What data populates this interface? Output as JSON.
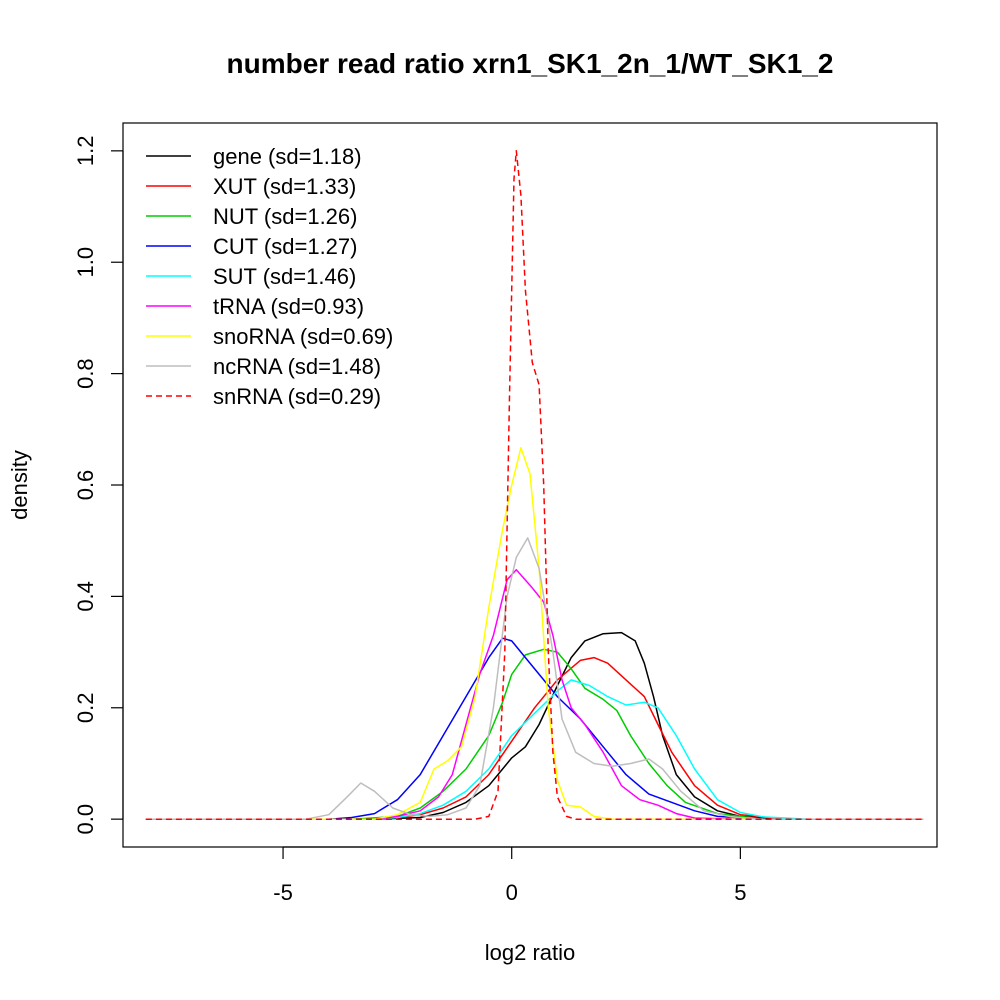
{
  "chart_data": {
    "type": "line",
    "title": "number read ratio xrn1_SK1_2n_1/WT_SK1_2",
    "xlabel": "log2 ratio",
    "ylabel": "density",
    "xlim": [
      -8.5,
      9.3
    ],
    "ylim": [
      -0.05,
      1.25
    ],
    "x_ticks": [
      -5,
      0,
      5
    ],
    "x_tick_labels": [
      "-5",
      "0",
      "5"
    ],
    "y_ticks": [
      0.0,
      0.2,
      0.4,
      0.6,
      0.8,
      1.0,
      1.2
    ],
    "y_tick_labels": [
      "0.0",
      "0.2",
      "0.4",
      "0.6",
      "0.8",
      "1.0",
      "1.2"
    ],
    "grid": false,
    "legend_position": "top-left",
    "series": [
      {
        "name": "gene (sd=1.18)",
        "color": "#000000",
        "dash": false,
        "points": [
          [
            -8,
            0
          ],
          [
            -3,
            0
          ],
          [
            -2,
            0.003
          ],
          [
            -1.5,
            0.012
          ],
          [
            -1,
            0.03
          ],
          [
            -0.5,
            0.06
          ],
          [
            -0.2,
            0.09
          ],
          [
            0,
            0.11
          ],
          [
            0.3,
            0.13
          ],
          [
            0.6,
            0.17
          ],
          [
            1.0,
            0.24
          ],
          [
            1.3,
            0.29
          ],
          [
            1.6,
            0.32
          ],
          [
            2.0,
            0.333
          ],
          [
            2.4,
            0.335
          ],
          [
            2.7,
            0.32
          ],
          [
            2.9,
            0.28
          ],
          [
            3.1,
            0.22
          ],
          [
            3.3,
            0.15
          ],
          [
            3.6,
            0.08
          ],
          [
            4.0,
            0.04
          ],
          [
            4.5,
            0.015
          ],
          [
            5,
            0.005
          ],
          [
            6,
            0
          ],
          [
            9,
            0
          ]
        ]
      },
      {
        "name": "XUT (sd=1.33)",
        "color": "#ff0000",
        "dash": false,
        "points": [
          [
            -8,
            0
          ],
          [
            -3.5,
            0
          ],
          [
            -2.5,
            0.003
          ],
          [
            -2,
            0.008
          ],
          [
            -1.5,
            0.02
          ],
          [
            -1,
            0.04
          ],
          [
            -0.5,
            0.08
          ],
          [
            0,
            0.14
          ],
          [
            0.5,
            0.2
          ],
          [
            1.0,
            0.25
          ],
          [
            1.5,
            0.285
          ],
          [
            1.8,
            0.29
          ],
          [
            2.1,
            0.28
          ],
          [
            2.5,
            0.25
          ],
          [
            2.9,
            0.22
          ],
          [
            3.2,
            0.17
          ],
          [
            3.5,
            0.12
          ],
          [
            4.0,
            0.06
          ],
          [
            4.5,
            0.025
          ],
          [
            5.0,
            0.008
          ],
          [
            6,
            0
          ],
          [
            9,
            0
          ]
        ]
      },
      {
        "name": "NUT (sd=1.26)",
        "color": "#00cd00",
        "dash": false,
        "points": [
          [
            -8,
            0
          ],
          [
            -3.5,
            0
          ],
          [
            -2.5,
            0.005
          ],
          [
            -2,
            0.02
          ],
          [
            -1.5,
            0.05
          ],
          [
            -1,
            0.09
          ],
          [
            -0.5,
            0.15
          ],
          [
            -0.2,
            0.21
          ],
          [
            0,
            0.26
          ],
          [
            0.3,
            0.295
          ],
          [
            0.7,
            0.305
          ],
          [
            1.0,
            0.3
          ],
          [
            1.3,
            0.27
          ],
          [
            1.6,
            0.235
          ],
          [
            2.0,
            0.215
          ],
          [
            2.3,
            0.195
          ],
          [
            2.6,
            0.15
          ],
          [
            3.0,
            0.1
          ],
          [
            3.4,
            0.06
          ],
          [
            3.8,
            0.03
          ],
          [
            4.5,
            0.01
          ],
          [
            5.5,
            0
          ],
          [
            9,
            0
          ]
        ]
      },
      {
        "name": "CUT (sd=1.27)",
        "color": "#0000ff",
        "dash": false,
        "points": [
          [
            -8,
            0
          ],
          [
            -4,
            0
          ],
          [
            -3.5,
            0.003
          ],
          [
            -3,
            0.01
          ],
          [
            -2.5,
            0.035
          ],
          [
            -2,
            0.08
          ],
          [
            -1.5,
            0.15
          ],
          [
            -1,
            0.22
          ],
          [
            -0.5,
            0.29
          ],
          [
            -0.2,
            0.325
          ],
          [
            0,
            0.32
          ],
          [
            0.3,
            0.29
          ],
          [
            0.7,
            0.25
          ],
          [
            1.0,
            0.22
          ],
          [
            1.5,
            0.18
          ],
          [
            2.0,
            0.13
          ],
          [
            2.5,
            0.08
          ],
          [
            3.0,
            0.045
          ],
          [
            3.5,
            0.03
          ],
          [
            4.0,
            0.015
          ],
          [
            4.5,
            0.005
          ],
          [
            5.5,
            0
          ],
          [
            9,
            0
          ]
        ]
      },
      {
        "name": "SUT (sd=1.46)",
        "color": "#00ffff",
        "dash": false,
        "points": [
          [
            -8,
            0
          ],
          [
            -3,
            0
          ],
          [
            -2.5,
            0.003
          ],
          [
            -2,
            0.01
          ],
          [
            -1.5,
            0.025
          ],
          [
            -1,
            0.05
          ],
          [
            -0.5,
            0.09
          ],
          [
            0,
            0.15
          ],
          [
            0.5,
            0.19
          ],
          [
            1.0,
            0.23
          ],
          [
            1.3,
            0.25
          ],
          [
            1.7,
            0.24
          ],
          [
            2.1,
            0.22
          ],
          [
            2.5,
            0.205
          ],
          [
            2.9,
            0.21
          ],
          [
            3.2,
            0.2
          ],
          [
            3.6,
            0.15
          ],
          [
            4.0,
            0.09
          ],
          [
            4.5,
            0.035
          ],
          [
            5.0,
            0.012
          ],
          [
            5.5,
            0.004
          ],
          [
            6.5,
            0
          ],
          [
            9,
            0
          ]
        ]
      },
      {
        "name": "tRNA (sd=0.93)",
        "color": "#ff00ff",
        "dash": false,
        "points": [
          [
            -8,
            0
          ],
          [
            -3,
            0
          ],
          [
            -2.5,
            0.005
          ],
          [
            -2,
            0.015
          ],
          [
            -1.6,
            0.04
          ],
          [
            -1.3,
            0.08
          ],
          [
            -1,
            0.17
          ],
          [
            -0.7,
            0.26
          ],
          [
            -0.4,
            0.33
          ],
          [
            -0.1,
            0.43
          ],
          [
            0.1,
            0.448
          ],
          [
            0.4,
            0.42
          ],
          [
            0.7,
            0.39
          ],
          [
            0.9,
            0.33
          ],
          [
            1.1,
            0.25
          ],
          [
            1.3,
            0.2
          ],
          [
            1.6,
            0.17
          ],
          [
            2.0,
            0.12
          ],
          [
            2.4,
            0.06
          ],
          [
            2.8,
            0.035
          ],
          [
            3.2,
            0.025
          ],
          [
            3.6,
            0.01
          ],
          [
            4.0,
            0.002
          ],
          [
            5,
            0
          ],
          [
            9,
            0
          ]
        ]
      },
      {
        "name": "snoRNA (sd=0.69)",
        "color": "#ffff00",
        "dash": false,
        "points": [
          [
            -8,
            0
          ],
          [
            -3,
            0
          ],
          [
            -2.5,
            0.008
          ],
          [
            -2,
            0.03
          ],
          [
            -1.7,
            0.09
          ],
          [
            -1.4,
            0.105
          ],
          [
            -1.1,
            0.13
          ],
          [
            -0.8,
            0.22
          ],
          [
            -0.5,
            0.38
          ],
          [
            -0.2,
            0.52
          ],
          [
            0,
            0.6
          ],
          [
            0.2,
            0.667
          ],
          [
            0.4,
            0.62
          ],
          [
            0.6,
            0.45
          ],
          [
            0.8,
            0.2
          ],
          [
            1.0,
            0.07
          ],
          [
            1.2,
            0.025
          ],
          [
            1.5,
            0.022
          ],
          [
            1.8,
            0.005
          ],
          [
            2.2,
            0
          ],
          [
            9,
            0
          ]
        ]
      },
      {
        "name": "ncRNA (sd=1.48)",
        "color": "#bebebe",
        "dash": false,
        "points": [
          [
            -8,
            0
          ],
          [
            -4.5,
            0
          ],
          [
            -4,
            0.008
          ],
          [
            -3.6,
            0.04
          ],
          [
            -3.3,
            0.065
          ],
          [
            -3.0,
            0.05
          ],
          [
            -2.6,
            0.02
          ],
          [
            -2.2,
            0.008
          ],
          [
            -1.8,
            0.005
          ],
          [
            -1.4,
            0.008
          ],
          [
            -1.0,
            0.02
          ],
          [
            -0.7,
            0.06
          ],
          [
            -0.4,
            0.2
          ],
          [
            -0.1,
            0.4
          ],
          [
            0.1,
            0.47
          ],
          [
            0.35,
            0.505
          ],
          [
            0.6,
            0.45
          ],
          [
            0.9,
            0.3
          ],
          [
            1.1,
            0.18
          ],
          [
            1.4,
            0.12
          ],
          [
            1.8,
            0.1
          ],
          [
            2.2,
            0.095
          ],
          [
            2.6,
            0.1
          ],
          [
            3.0,
            0.108
          ],
          [
            3.3,
            0.09
          ],
          [
            3.7,
            0.05
          ],
          [
            4.2,
            0.015
          ],
          [
            4.8,
            0.004
          ],
          [
            5.5,
            0
          ],
          [
            9,
            0
          ]
        ]
      },
      {
        "name": "snRNA (sd=0.29)",
        "color": "#ff0000",
        "dash": true,
        "points": [
          [
            -8,
            0
          ],
          [
            -0.8,
            0
          ],
          [
            -0.5,
            0.005
          ],
          [
            -0.3,
            0.05
          ],
          [
            -0.15,
            0.3
          ],
          [
            -0.05,
            0.75
          ],
          [
            0.05,
            1.15
          ],
          [
            0.1,
            1.2
          ],
          [
            0.2,
            1.12
          ],
          [
            0.3,
            0.95
          ],
          [
            0.45,
            0.82
          ],
          [
            0.6,
            0.78
          ],
          [
            0.7,
            0.6
          ],
          [
            0.8,
            0.3
          ],
          [
            0.9,
            0.12
          ],
          [
            1.0,
            0.04
          ],
          [
            1.2,
            0.005
          ],
          [
            1.4,
            0
          ],
          [
            9,
            0
          ]
        ]
      }
    ]
  }
}
